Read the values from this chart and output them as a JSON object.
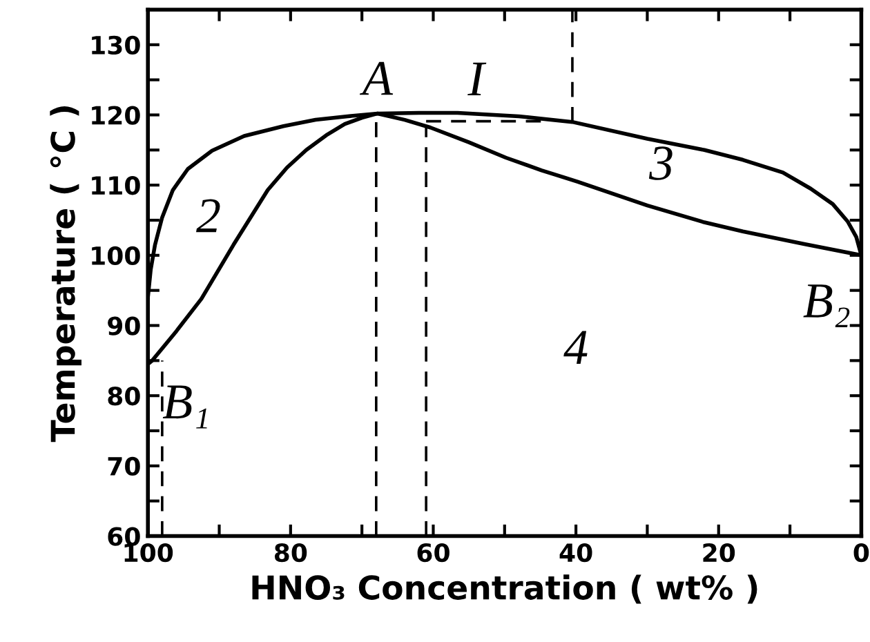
{
  "chart_data": {
    "type": "line",
    "xlabel": "HNO₃ Concentration ( wt% )",
    "ylabel": "Temperature ( °C )",
    "xlim": [
      100,
      0
    ],
    "ylim": [
      60,
      135
    ],
    "xticks": [
      100,
      {
        "value": 90,
        "label": null
      },
      80,
      {
        "value": 70,
        "label": null
      },
      60,
      {
        "value": 50,
        "label": null
      },
      40,
      {
        "value": 30,
        "label": null
      },
      20,
      {
        "value": 10,
        "label": null
      },
      0
    ],
    "yticks": [
      60,
      {
        "value": 65,
        "label": null
      },
      70,
      {
        "value": 75,
        "label": null
      },
      80,
      {
        "value": 85,
        "label": null
      },
      90,
      {
        "value": 95,
        "label": null
      },
      100,
      {
        "value": 105,
        "label": null
      },
      110,
      {
        "value": 115,
        "label": null
      },
      120,
      {
        "value": 125,
        "label": null
      },
      130
    ],
    "grid": false,
    "legend": false,
    "marker": "none",
    "series": [
      {
        "color": "#000000",
        "line_style": "solid",
        "x": [
          100,
          99.6,
          99,
          98,
          96.5,
          94.4,
          91,
          86.5,
          81,
          76.5,
          72,
          67.8,
          62,
          56.6,
          48,
          40.5,
          30,
          22,
          16.6,
          11,
          7.1,
          4,
          1.9,
          0.7,
          0
        ],
        "values": [
          94,
          98,
          101.5,
          105.4,
          109.3,
          112.3,
          114.9,
          117,
          118.4,
          119.3,
          119.8,
          120.2,
          120.3,
          120.3,
          119.8,
          119,
          116.6,
          115,
          113.6,
          111.8,
          109.5,
          107.3,
          104.8,
          102.6,
          100
        ]
      },
      {
        "color": "#000000",
        "line_style": "solid",
        "x": [
          100,
          99.4,
          96,
          92.5,
          88,
          83.2,
          80.5,
          77.8,
          75,
          72.4,
          70,
          67.8,
          64,
          60.4,
          55,
          49.8,
          44.8,
          39.8,
          30,
          22,
          16.6,
          8,
          0
        ],
        "values": [
          84.5,
          85,
          89.2,
          93.8,
          101.5,
          109.3,
          112.5,
          115,
          117.1,
          118.7,
          119.6,
          120.2,
          119.3,
          118.2,
          116.1,
          113.9,
          112.1,
          110.5,
          107.1,
          104.7,
          103.4,
          101.6,
          100
        ]
      },
      {
        "color": "#000000",
        "line_style": "dashed",
        "x": [
          98,
          98
        ],
        "values": [
          60,
          85
        ]
      },
      {
        "color": "#000000",
        "line_style": "dashed",
        "x": [
          68,
          68
        ],
        "values": [
          60,
          120.2
        ]
      },
      {
        "color": "#000000",
        "line_style": "dashed",
        "x": [
          61,
          61
        ],
        "values": [
          60,
          118.4
        ]
      },
      {
        "color": "#000000",
        "line_style": "dashed",
        "x": [
          61,
          44.6
        ],
        "values": [
          119.1,
          119.1
        ]
      },
      {
        "color": "#000000",
        "line_style": "dashed",
        "x": [
          40.5,
          40.5
        ],
        "values": [
          119,
          135
        ]
      }
    ],
    "annotations": [
      {
        "text": "A",
        "x": 67.8,
        "y": 120.2
      },
      "I",
      "2",
      "3",
      "4",
      {
        "text": "B₁",
        "x": 100,
        "y": 84.5
      },
      {
        "text": "B₂",
        "x": 0,
        "y": 100
      }
    ]
  }
}
